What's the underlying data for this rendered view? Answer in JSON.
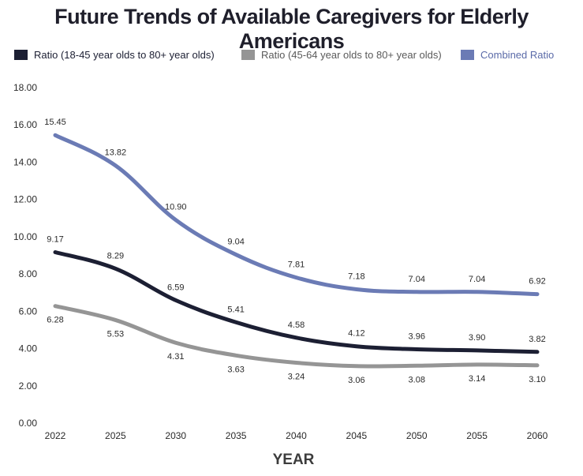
{
  "chart_data": {
    "type": "line",
    "title": "Future Trends of Available Caregivers for Elderly Americans",
    "xlabel": "YEAR",
    "ylabel": "",
    "categories": [
      "2022",
      "2025",
      "2030",
      "2035",
      "2040",
      "2045",
      "2050",
      "2055",
      "2060"
    ],
    "ylim": [
      0,
      18
    ],
    "yticks": [
      "0.00",
      "2.00",
      "4.00",
      "6.00",
      "8.00",
      "10.00",
      "12.00",
      "14.00",
      "16.00",
      "18.00"
    ],
    "legend_position": "top",
    "grid": false,
    "series": [
      {
        "name": "Ratio (18-45 year olds to 80+ year olds)",
        "color": "#1c1f33",
        "values": [
          9.17,
          8.29,
          6.59,
          5.41,
          4.58,
          4.12,
          3.96,
          3.9,
          3.82
        ],
        "labels": [
          "9.17",
          "8.29",
          "6.59",
          "5.41",
          "4.58",
          "4.12",
          "3.96",
          "3.90",
          "3.82"
        ],
        "label_side": "above"
      },
      {
        "name": "Ratio (45-64 year olds to 80+ year olds)",
        "color": "#959595",
        "values": [
          6.28,
          5.53,
          4.31,
          3.63,
          3.24,
          3.06,
          3.08,
          3.14,
          3.1
        ],
        "labels": [
          "6.28",
          "5.53",
          "4.31",
          "3.63",
          "3.24",
          "3.06",
          "3.08",
          "3.14",
          "3.10"
        ],
        "label_side": "below"
      },
      {
        "name": "Combined Ratio",
        "color": "#6b7bb5",
        "values": [
          15.45,
          13.82,
          10.9,
          9.04,
          7.81,
          7.18,
          7.04,
          7.04,
          6.92
        ],
        "labels": [
          "15.45",
          "13.82",
          "10.90",
          "9.04",
          "7.81",
          "7.18",
          "7.04",
          "7.04",
          "6.92"
        ],
        "label_side": "above"
      }
    ]
  }
}
